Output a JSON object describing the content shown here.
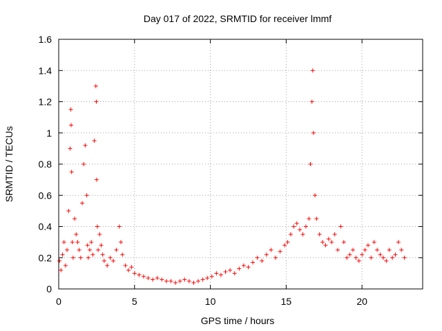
{
  "chart_data": {
    "type": "scatter",
    "title": "Day 017 of 2022, SRMTID for receiver lmmf",
    "xlabel": "GPS time / hours",
    "ylabel": "SRMTID / TECUs",
    "xlim": [
      0,
      24
    ],
    "ylim": [
      0,
      1.6
    ],
    "xticks": [
      0,
      5,
      10,
      15,
      20
    ],
    "xtick_labels": [
      "0",
      "5",
      "10",
      "15",
      "20"
    ],
    "yticks": [
      0,
      0.2,
      0.4,
      0.6,
      0.8,
      1,
      1.2,
      1.4,
      1.6
    ],
    "ytick_labels": [
      "0",
      "0.2",
      "0.4",
      "0.6",
      "0.8",
      "1",
      "1.2",
      "1.4",
      "1.6"
    ],
    "grid": true,
    "marker": "+",
    "color": "#ff0000",
    "series": [
      {
        "name": "SRMTID",
        "x": [
          0.05,
          0.15,
          0.25,
          0.35,
          0.45,
          0.55,
          0.65,
          0.75,
          0.8,
          0.82,
          0.85,
          0.9,
          0.95,
          1.05,
          1.15,
          1.25,
          1.35,
          1.45,
          1.55,
          1.65,
          1.75,
          1.85,
          1.9,
          1.95,
          2.05,
          2.15,
          2.25,
          2.35,
          2.45,
          2.48,
          2.5,
          2.55,
          2.6,
          2.7,
          2.8,
          2.9,
          3.0,
          3.2,
          3.4,
          3.6,
          3.8,
          4.0,
          4.1,
          4.2,
          4.4,
          4.6,
          4.8,
          5.0,
          5.3,
          5.6,
          5.9,
          6.2,
          6.5,
          6.8,
          7.1,
          7.4,
          7.7,
          8.0,
          8.3,
          8.6,
          8.9,
          9.2,
          9.5,
          9.8,
          10.1,
          10.4,
          10.7,
          11.0,
          11.3,
          11.6,
          11.9,
          12.2,
          12.5,
          12.8,
          13.1,
          13.4,
          13.7,
          14.0,
          14.3,
          14.6,
          14.9,
          15.1,
          15.3,
          15.5,
          15.7,
          15.9,
          16.1,
          16.3,
          16.5,
          16.6,
          16.7,
          16.75,
          16.8,
          16.9,
          17.0,
          17.2,
          17.4,
          17.6,
          17.8,
          18.0,
          18.2,
          18.4,
          18.6,
          18.8,
          19.0,
          19.2,
          19.4,
          19.6,
          19.8,
          20.0,
          20.2,
          20.4,
          20.6,
          20.8,
          21.0,
          21.2,
          21.4,
          21.6,
          21.8,
          22.0,
          22.2,
          22.4,
          22.6,
          22.8
        ],
        "y": [
          0.18,
          0.12,
          0.22,
          0.3,
          0.15,
          0.25,
          0.5,
          0.9,
          1.15,
          1.05,
          0.75,
          0.3,
          0.2,
          0.45,
          0.35,
          0.3,
          0.25,
          0.2,
          0.55,
          0.8,
          0.92,
          0.6,
          0.28,
          0.2,
          0.25,
          0.3,
          0.22,
          0.95,
          1.3,
          1.2,
          0.7,
          0.4,
          0.25,
          0.35,
          0.28,
          0.22,
          0.18,
          0.15,
          0.2,
          0.18,
          0.25,
          0.4,
          0.3,
          0.22,
          0.15,
          0.12,
          0.14,
          0.1,
          0.09,
          0.08,
          0.07,
          0.06,
          0.07,
          0.06,
          0.05,
          0.05,
          0.04,
          0.05,
          0.06,
          0.05,
          0.04,
          0.05,
          0.06,
          0.07,
          0.08,
          0.1,
          0.09,
          0.11,
          0.12,
          0.1,
          0.13,
          0.15,
          0.14,
          0.17,
          0.2,
          0.18,
          0.22,
          0.25,
          0.2,
          0.24,
          0.28,
          0.3,
          0.35,
          0.4,
          0.42,
          0.38,
          0.35,
          0.4,
          0.45,
          0.8,
          1.2,
          1.4,
          1.0,
          0.6,
          0.45,
          0.35,
          0.3,
          0.28,
          0.32,
          0.3,
          0.35,
          0.25,
          0.4,
          0.3,
          0.2,
          0.22,
          0.25,
          0.2,
          0.18,
          0.22,
          0.25,
          0.28,
          0.2,
          0.3,
          0.25,
          0.22,
          0.2,
          0.18,
          0.25,
          0.2,
          0.22,
          0.3,
          0.25,
          0.2
        ]
      }
    ]
  }
}
